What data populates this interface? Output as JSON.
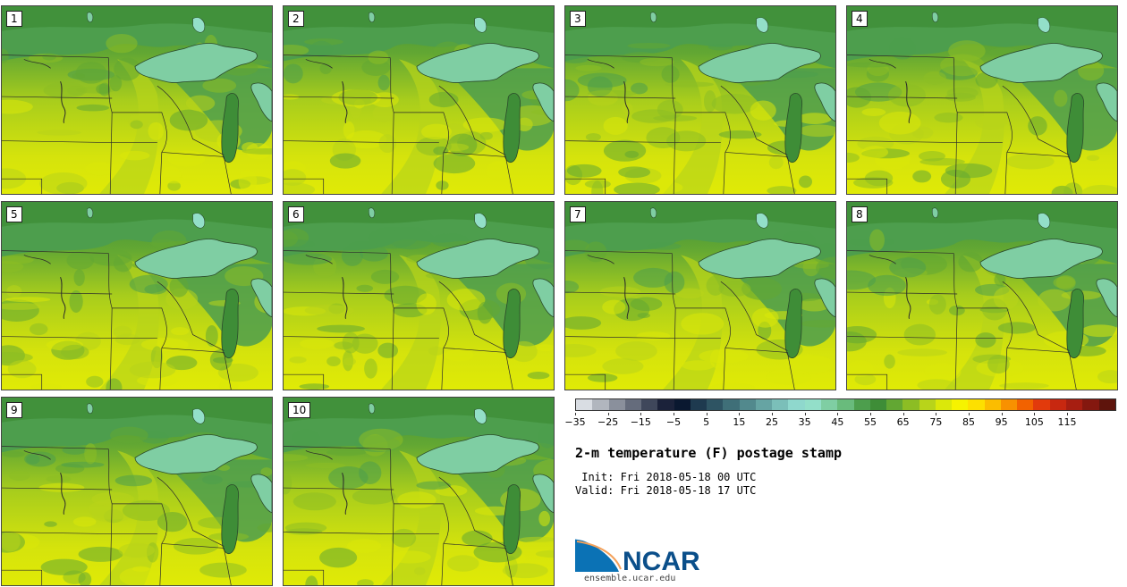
{
  "panels": [
    {
      "label": "1"
    },
    {
      "label": "2"
    },
    {
      "label": "3"
    },
    {
      "label": "4"
    },
    {
      "label": "5"
    },
    {
      "label": "6"
    },
    {
      "label": "7"
    },
    {
      "label": "8"
    },
    {
      "label": "9"
    },
    {
      "label": "10"
    }
  ],
  "colorbar": {
    "colors": [
      "#d9dde3",
      "#b1b6be",
      "#8a909c",
      "#656c7c",
      "#3f475b",
      "#1b223a",
      "#0a1830",
      "#1e3a4f",
      "#2e5463",
      "#3f6f78",
      "#52898d",
      "#66a4a3",
      "#7bbfb9",
      "#8fd8cd",
      "#93dfc9",
      "#7fcea3",
      "#69bb7c",
      "#4d9e4d",
      "#3e8d37",
      "#62a733",
      "#8cbd24",
      "#b8d41a",
      "#dbe80a",
      "#f6f300",
      "#fde000",
      "#fbbd00",
      "#f89100",
      "#f26200",
      "#e23a0c",
      "#c82810",
      "#a71e11",
      "#84180f",
      "#5e140c"
    ],
    "tick_labels": [
      "−35",
      "−25",
      "−15",
      "−5",
      "5",
      "15",
      "25",
      "35",
      "45",
      "55",
      "65",
      "75",
      "85",
      "95",
      "105",
      "115"
    ]
  },
  "title": "2-m temperature (F) postage stamp",
  "init": " Init: Fri 2018-05-18 00 UTC",
  "valid": "Valid: Fri 2018-05-18 17 UTC",
  "logo": {
    "text": "NCAR",
    "url": "ensemble.ucar.edu"
  }
}
